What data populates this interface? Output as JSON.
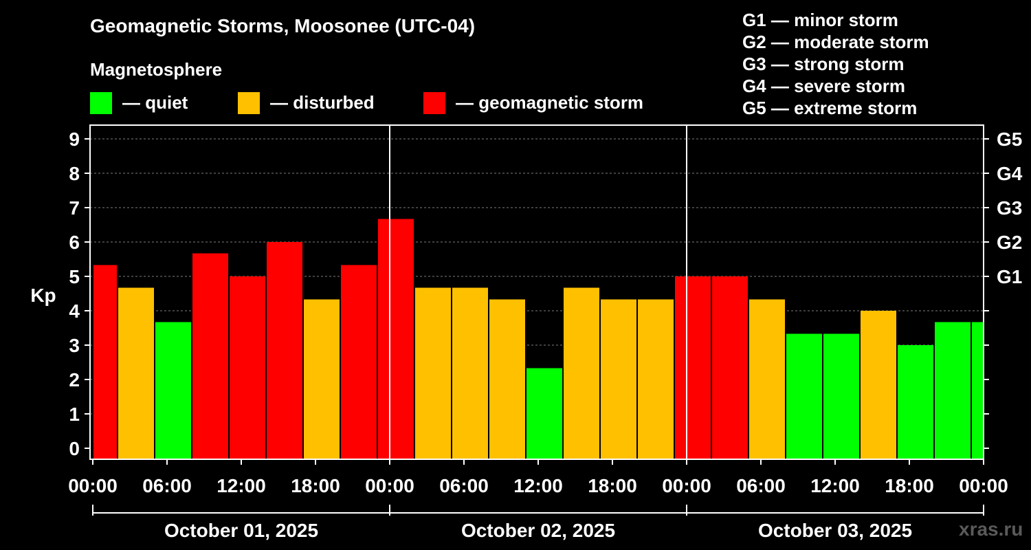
{
  "chart_data": {
    "type": "bar",
    "title": "Geomagnetic Storms, Moosonee (UTC-04)",
    "ylabel": "Kp",
    "ylim": [
      0,
      9.3
    ],
    "yticks": [
      "0",
      "1",
      "2",
      "3",
      "4",
      "5",
      "6",
      "7",
      "8",
      "9"
    ],
    "right_ticks": [
      {
        "label": "G1",
        "kp": 5
      },
      {
        "label": "G2",
        "kp": 6
      },
      {
        "label": "G3",
        "kp": 7
      },
      {
        "label": "G4",
        "kp": 8
      },
      {
        "label": "G5",
        "kp": 9
      }
    ],
    "xlim_hours": [
      0,
      72
    ],
    "xticks": [
      {
        "label": "00:00",
        "hour": 0
      },
      {
        "label": "06:00",
        "hour": 6
      },
      {
        "label": "12:00",
        "hour": 12
      },
      {
        "label": "18:00",
        "hour": 18
      },
      {
        "label": "00:00",
        "hour": 24
      },
      {
        "label": "06:00",
        "hour": 30
      },
      {
        "label": "12:00",
        "hour": 36
      },
      {
        "label": "18:00",
        "hour": 42
      },
      {
        "label": "00:00",
        "hour": 48
      },
      {
        "label": "06:00",
        "hour": 54
      },
      {
        "label": "12:00",
        "hour": 60
      },
      {
        "label": "18:00",
        "hour": 66
      },
      {
        "label": "00:00",
        "hour": 72
      }
    ],
    "day_separators_hours": [
      24,
      48
    ],
    "dates": [
      {
        "label": "October 01, 2025",
        "start_hour": 0,
        "end_hour": 24
      },
      {
        "label": "October 02, 2025",
        "start_hour": 24,
        "end_hour": 48
      },
      {
        "label": "October 03, 2025",
        "start_hour": 48,
        "end_hour": 72
      }
    ],
    "bars": [
      {
        "start": 0,
        "end": 2,
        "kp": 5.33,
        "level": "storm"
      },
      {
        "start": 2,
        "end": 5,
        "kp": 4.67,
        "level": "disturbed"
      },
      {
        "start": 5,
        "end": 8,
        "kp": 3.67,
        "level": "quiet"
      },
      {
        "start": 8,
        "end": 11,
        "kp": 5.67,
        "level": "storm"
      },
      {
        "start": 11,
        "end": 14,
        "kp": 5.0,
        "level": "storm"
      },
      {
        "start": 14,
        "end": 17,
        "kp": 6.0,
        "level": "storm"
      },
      {
        "start": 17,
        "end": 20,
        "kp": 4.33,
        "level": "disturbed"
      },
      {
        "start": 20,
        "end": 23,
        "kp": 5.33,
        "level": "storm"
      },
      {
        "start": 23,
        "end": 26,
        "kp": 6.67,
        "level": "storm"
      },
      {
        "start": 26,
        "end": 29,
        "kp": 4.67,
        "level": "disturbed"
      },
      {
        "start": 29,
        "end": 32,
        "kp": 4.67,
        "level": "disturbed"
      },
      {
        "start": 32,
        "end": 35,
        "kp": 4.33,
        "level": "disturbed"
      },
      {
        "start": 35,
        "end": 38,
        "kp": 2.33,
        "level": "quiet"
      },
      {
        "start": 38,
        "end": 41,
        "kp": 4.67,
        "level": "disturbed"
      },
      {
        "start": 41,
        "end": 44,
        "kp": 4.33,
        "level": "disturbed"
      },
      {
        "start": 44,
        "end": 47,
        "kp": 4.33,
        "level": "disturbed"
      },
      {
        "start": 47,
        "end": 50,
        "kp": 5.0,
        "level": "storm"
      },
      {
        "start": 50,
        "end": 53,
        "kp": 5.0,
        "level": "storm"
      },
      {
        "start": 53,
        "end": 56,
        "kp": 4.33,
        "level": "disturbed"
      },
      {
        "start": 56,
        "end": 59,
        "kp": 3.33,
        "level": "quiet"
      },
      {
        "start": 59,
        "end": 62,
        "kp": 3.33,
        "level": "quiet"
      },
      {
        "start": 62,
        "end": 65,
        "kp": 4.0,
        "level": "disturbed"
      },
      {
        "start": 65,
        "end": 68,
        "kp": 3.0,
        "level": "quiet"
      },
      {
        "start": 68,
        "end": 71,
        "kp": 3.67,
        "level": "quiet"
      },
      {
        "start": 71,
        "end": 72,
        "kp": 3.67,
        "level": "quiet"
      }
    ]
  },
  "colors": {
    "quiet": "#00ff00",
    "disturbed": "#ffc000",
    "storm": "#ff0000",
    "axis": "#ffffff",
    "grid": "#808080"
  },
  "legend": {
    "title": "Magnetosphere",
    "items": [
      {
        "key": "quiet",
        "label": "— quiet"
      },
      {
        "key": "disturbed",
        "label": "— disturbed"
      },
      {
        "key": "storm",
        "label": "— geomagnetic storm"
      }
    ]
  },
  "gscale": [
    "G1 — minor storm",
    "G2 — moderate storm",
    "G3 — strong storm",
    "G4 — severe storm",
    "G5 — extreme storm"
  ],
  "watermark": "xras.ru"
}
